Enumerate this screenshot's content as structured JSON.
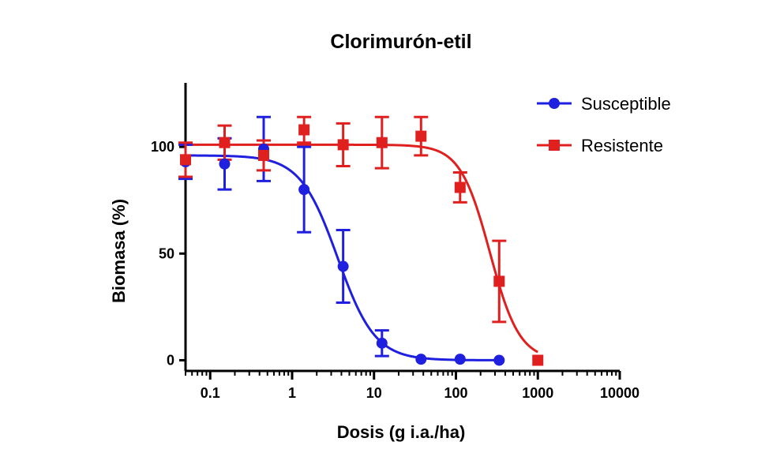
{
  "chart_data": {
    "type": "scatter",
    "title": "Clorimurón-etil",
    "xlabel": "Dosis (g i.a./ha)",
    "ylabel": "Biomasa (%)",
    "xscale": "log",
    "xlim": [
      0.05,
      10000
    ],
    "ylim": [
      -5,
      130
    ],
    "xticks": [
      0.1,
      1,
      10,
      100,
      1000,
      10000
    ],
    "xtick_labels": [
      "0.1",
      "1",
      "10",
      "100",
      "1000",
      "10000"
    ],
    "yticks": [
      0,
      50,
      100
    ],
    "ytick_labels": [
      "0",
      "50",
      "100"
    ],
    "grid": false,
    "legend": "top-right",
    "series": [
      {
        "name": "Susceptible",
        "color": "#1f1fe0",
        "marker": "circle",
        "x": [
          0.05,
          0.15,
          0.45,
          1.4,
          4.2,
          12.5,
          37.5,
          112.5,
          337.5
        ],
        "y": [
          93,
          92,
          99,
          80,
          44,
          8,
          0.5,
          0.5,
          0
        ],
        "err": [
          8,
          12,
          15,
          20,
          17,
          6,
          0,
          0,
          0
        ],
        "fit": {
          "top": 96,
          "bottom": 0,
          "ec50": 3.6,
          "hill": 1.9
        }
      },
      {
        "name": "Resistente",
        "color": "#e01f1f",
        "marker": "square",
        "x": [
          0.05,
          0.15,
          0.45,
          1.4,
          4.2,
          12.5,
          37.5,
          112.5,
          337.5,
          1000
        ],
        "y": [
          94,
          102,
          96,
          108,
          101,
          102,
          105,
          81,
          37,
          0
        ],
        "err": [
          8,
          8,
          7,
          6,
          10,
          12,
          9,
          7,
          19,
          0
        ],
        "fit": {
          "top": 101,
          "bottom": 0,
          "ec50": 260,
          "hill": 2.4
        }
      }
    ]
  }
}
